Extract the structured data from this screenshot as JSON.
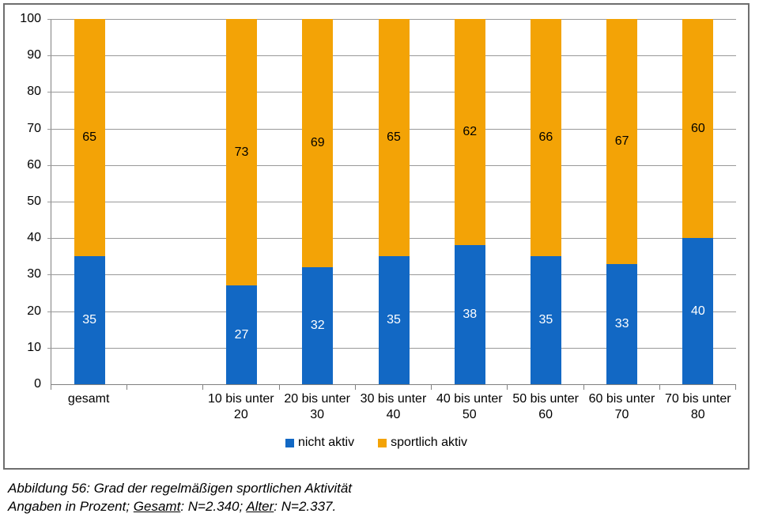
{
  "chart_data": {
    "type": "bar",
    "stacked": true,
    "title": "",
    "xlabel": "",
    "ylabel": "",
    "ylim": [
      0,
      100
    ],
    "yticks": [
      0,
      10,
      20,
      30,
      40,
      50,
      60,
      70,
      80,
      90,
      100
    ],
    "grid": true,
    "legend_position": "bottom",
    "categories": [
      {
        "lines": [
          "gesamt"
        ]
      },
      {
        "lines": []
      },
      {
        "lines": [
          "10 bis unter",
          "20"
        ]
      },
      {
        "lines": [
          "20 bis unter",
          "30"
        ]
      },
      {
        "lines": [
          "30 bis unter",
          "40"
        ]
      },
      {
        "lines": [
          "40 bis unter",
          "50"
        ]
      },
      {
        "lines": [
          "50 bis unter",
          "60"
        ]
      },
      {
        "lines": [
          "60 bis unter",
          "70"
        ]
      },
      {
        "lines": [
          "70 bis unter",
          "80"
        ]
      }
    ],
    "series": [
      {
        "name": "nicht aktiv",
        "color": "#1268c4",
        "label_color": "#ffffff",
        "values": [
          35,
          null,
          27,
          32,
          35,
          38,
          35,
          33,
          40
        ]
      },
      {
        "name": "sportlich aktiv",
        "color": "#f3a306",
        "label_color": "#000000",
        "values": [
          65,
          null,
          73,
          69,
          65,
          62,
          66,
          67,
          60
        ]
      }
    ]
  },
  "legend": {
    "items": [
      {
        "label": "nicht aktiv",
        "color": "#1268c4"
      },
      {
        "label": "sportlich aktiv",
        "color": "#f3a306"
      }
    ]
  },
  "caption": {
    "line1": "Abbildung 56: Grad der regelmäßigen sportlichen Aktivität",
    "line2_prefix": "Angaben in Prozent; ",
    "line2_term1": "Gesamt",
    "line2_mid": ": N=2.340; ",
    "line2_term2": "Alter",
    "line2_end": ": N=2.337."
  },
  "colors": {
    "gridline": "#999999",
    "axis": "#808080",
    "frame_border": "#6e6e6e"
  }
}
